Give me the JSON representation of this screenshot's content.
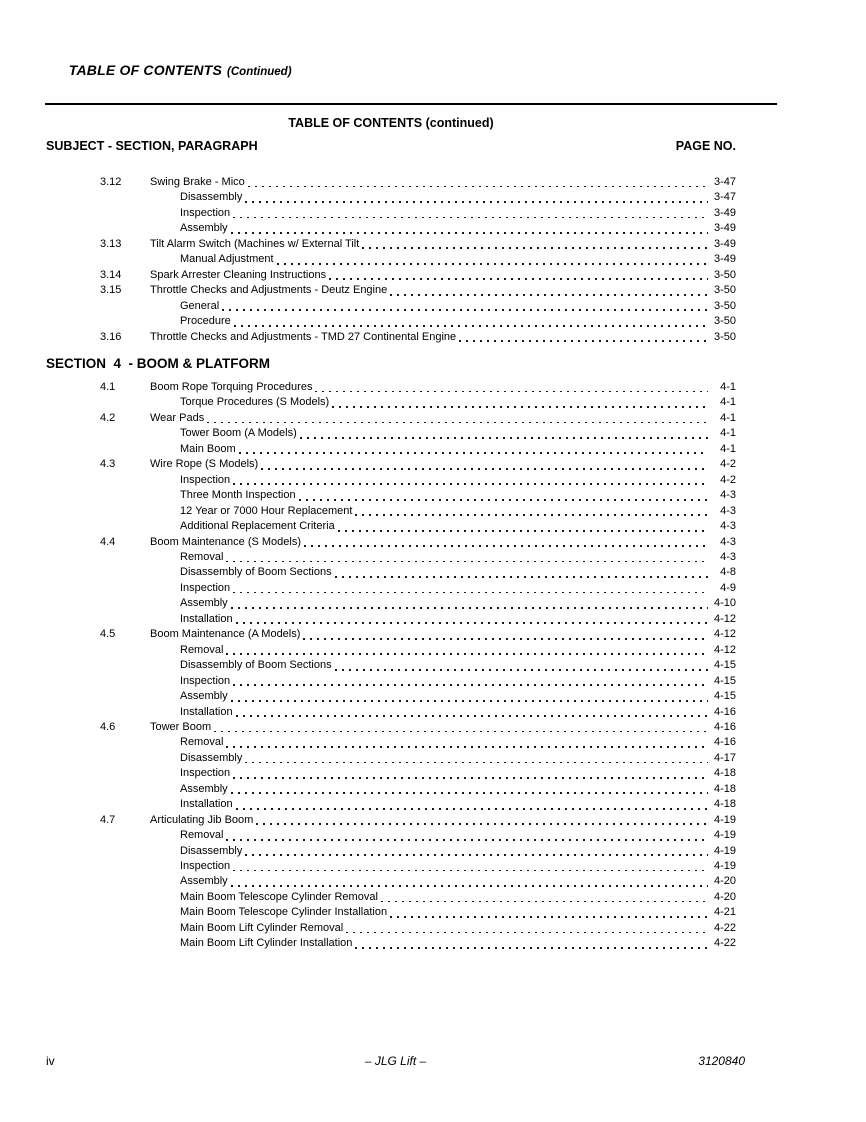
{
  "running_header": {
    "title": "TABLE OF CONTENTS",
    "suffix": "(Continued)"
  },
  "toc": {
    "heading": "TABLE OF CONTENTS (continued)",
    "subject_label": "SUBJECT - SECTION, PARAGRAPH",
    "page_label": "PAGE NO.",
    "sections": [
      {
        "header": "",
        "entries": [
          {
            "num": "3.12",
            "title": "Swing Brake - Mico",
            "page": "3-47"
          },
          {
            "num": "",
            "title": "Disassembly",
            "page": "3-47"
          },
          {
            "num": "",
            "title": "Inspection",
            "page": "3-49"
          },
          {
            "num": "",
            "title": "Assembly",
            "page": "3-49"
          },
          {
            "num": "3.13",
            "title": "Tilt Alarm Switch (Machines w/ External Tilt",
            "page": "3-49"
          },
          {
            "num": "",
            "title": "Manual Adjustment",
            "page": "3-49"
          },
          {
            "num": "3.14",
            "title": "Spark Arrester Cleaning Instructions",
            "page": "3-50"
          },
          {
            "num": "3.15",
            "title": "Throttle Checks and Adjustments - Deutz Engine",
            "page": "3-50"
          },
          {
            "num": "",
            "title": "General",
            "page": "3-50"
          },
          {
            "num": "",
            "title": "Procedure",
            "page": "3-50"
          },
          {
            "num": "3.16",
            "title": "Throttle Checks and Adjustments - TMD 27 Continental Engine",
            "page": "3-50"
          }
        ]
      },
      {
        "header": "SECTION  4  - BOOM & PLATFORM",
        "entries": [
          {
            "num": "4.1",
            "title": "Boom Rope Torquing Procedures",
            "page": "4-1"
          },
          {
            "num": "",
            "title": "Torque Procedures (S Models)",
            "page": "4-1"
          },
          {
            "num": "4.2",
            "title": "Wear Pads",
            "page": "4-1"
          },
          {
            "num": "",
            "title": "Tower Boom (A Models)",
            "page": "4-1"
          },
          {
            "num": "",
            "title": "Main Boom",
            "page": "4-1"
          },
          {
            "num": "4.3",
            "title": "Wire Rope (S Models)",
            "page": "4-2"
          },
          {
            "num": "",
            "title": "Inspection",
            "page": "4-2"
          },
          {
            "num": "",
            "title": "Three Month Inspection",
            "page": "4-3"
          },
          {
            "num": "",
            "title": "12 Year or 7000 Hour Replacement",
            "page": "4-3"
          },
          {
            "num": "",
            "title": "Additional Replacement Criteria",
            "page": "4-3"
          },
          {
            "num": "4.4",
            "title": "Boom Maintenance (S Models)",
            "page": "4-3"
          },
          {
            "num": "",
            "title": "Removal",
            "page": "4-3"
          },
          {
            "num": "",
            "title": "Disassembly of Boom Sections",
            "page": "4-8"
          },
          {
            "num": "",
            "title": "Inspection",
            "page": "4-9"
          },
          {
            "num": "",
            "title": "Assembly",
            "page": "4-10"
          },
          {
            "num": "",
            "title": "Installation",
            "page": "4-12"
          },
          {
            "num": "4.5",
            "title": "Boom Maintenance (A Models)",
            "page": "4-12"
          },
          {
            "num": "",
            "title": "Removal",
            "page": "4-12"
          },
          {
            "num": "",
            "title": "Disassembly of Boom Sections",
            "page": "4-15"
          },
          {
            "num": "",
            "title": "Inspection",
            "page": "4-15"
          },
          {
            "num": "",
            "title": "Assembly",
            "page": "4-15"
          },
          {
            "num": "",
            "title": "Installation",
            "page": "4-16"
          },
          {
            "num": "4.6",
            "title": "Tower Boom",
            "page": "4-16"
          },
          {
            "num": "",
            "title": "Removal",
            "page": "4-16"
          },
          {
            "num": "",
            "title": "Disassembly",
            "page": "4-17"
          },
          {
            "num": "",
            "title": "Inspection",
            "page": "4-18"
          },
          {
            "num": "",
            "title": "Assembly",
            "page": "4-18"
          },
          {
            "num": "",
            "title": "Installation",
            "page": "4-18"
          },
          {
            "num": "4.7",
            "title": "Articulating Jib Boom",
            "page": "4-19"
          },
          {
            "num": "",
            "title": "Removal",
            "page": "4-19"
          },
          {
            "num": "",
            "title": "Disassembly",
            "page": "4-19"
          },
          {
            "num": "",
            "title": "Inspection",
            "page": "4-19"
          },
          {
            "num": "",
            "title": "Assembly",
            "page": "4-20"
          },
          {
            "num": "",
            "title": "Main Boom Telescope Cylinder Removal",
            "page": "4-20"
          },
          {
            "num": "",
            "title": "Main Boom Telescope Cylinder Installation",
            "page": "4-21"
          },
          {
            "num": "",
            "title": "Main Boom Lift Cylinder Removal",
            "page": "4-22"
          },
          {
            "num": "",
            "title": "Main Boom Lift Cylinder Installation",
            "page": "4-22"
          }
        ]
      }
    ]
  },
  "footer": {
    "page": "iv",
    "center": "– JLG Lift –",
    "doc_number": "3120840"
  }
}
